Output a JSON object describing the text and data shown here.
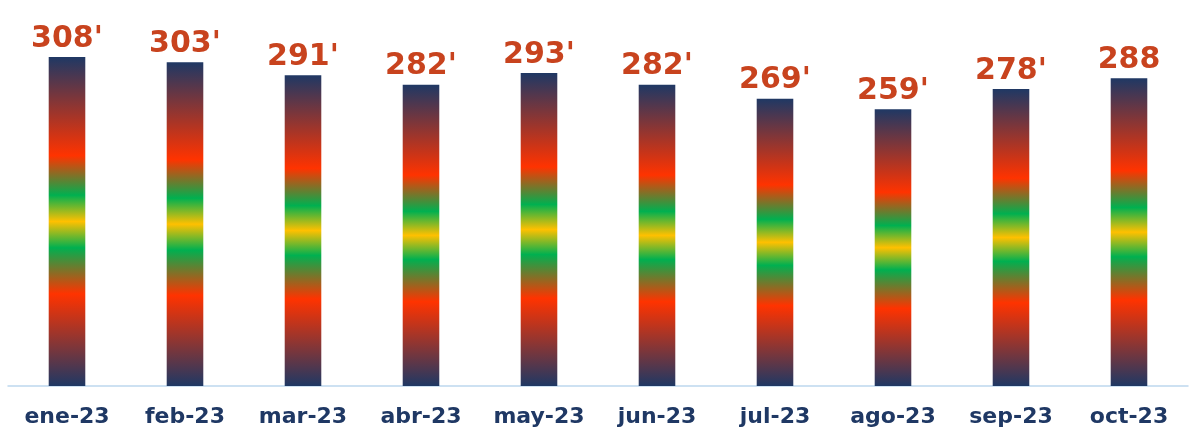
{
  "chart_data": {
    "type": "bar",
    "categories": [
      "ene-23",
      "feb-23",
      "mar-23",
      "abr-23",
      "may-23",
      "jun-23",
      "jul-23",
      "ago-23",
      "sep-23",
      "oct-23"
    ],
    "values": [
      308,
      303,
      291,
      282,
      293,
      282,
      269,
      259,
      278,
      288
    ],
    "value_labels": [
      "308'",
      "303'",
      "291'",
      "282'",
      "293'",
      "282'",
      "269'",
      "259'",
      "278'",
      "288"
    ],
    "color": "#ff3300"
  }
}
